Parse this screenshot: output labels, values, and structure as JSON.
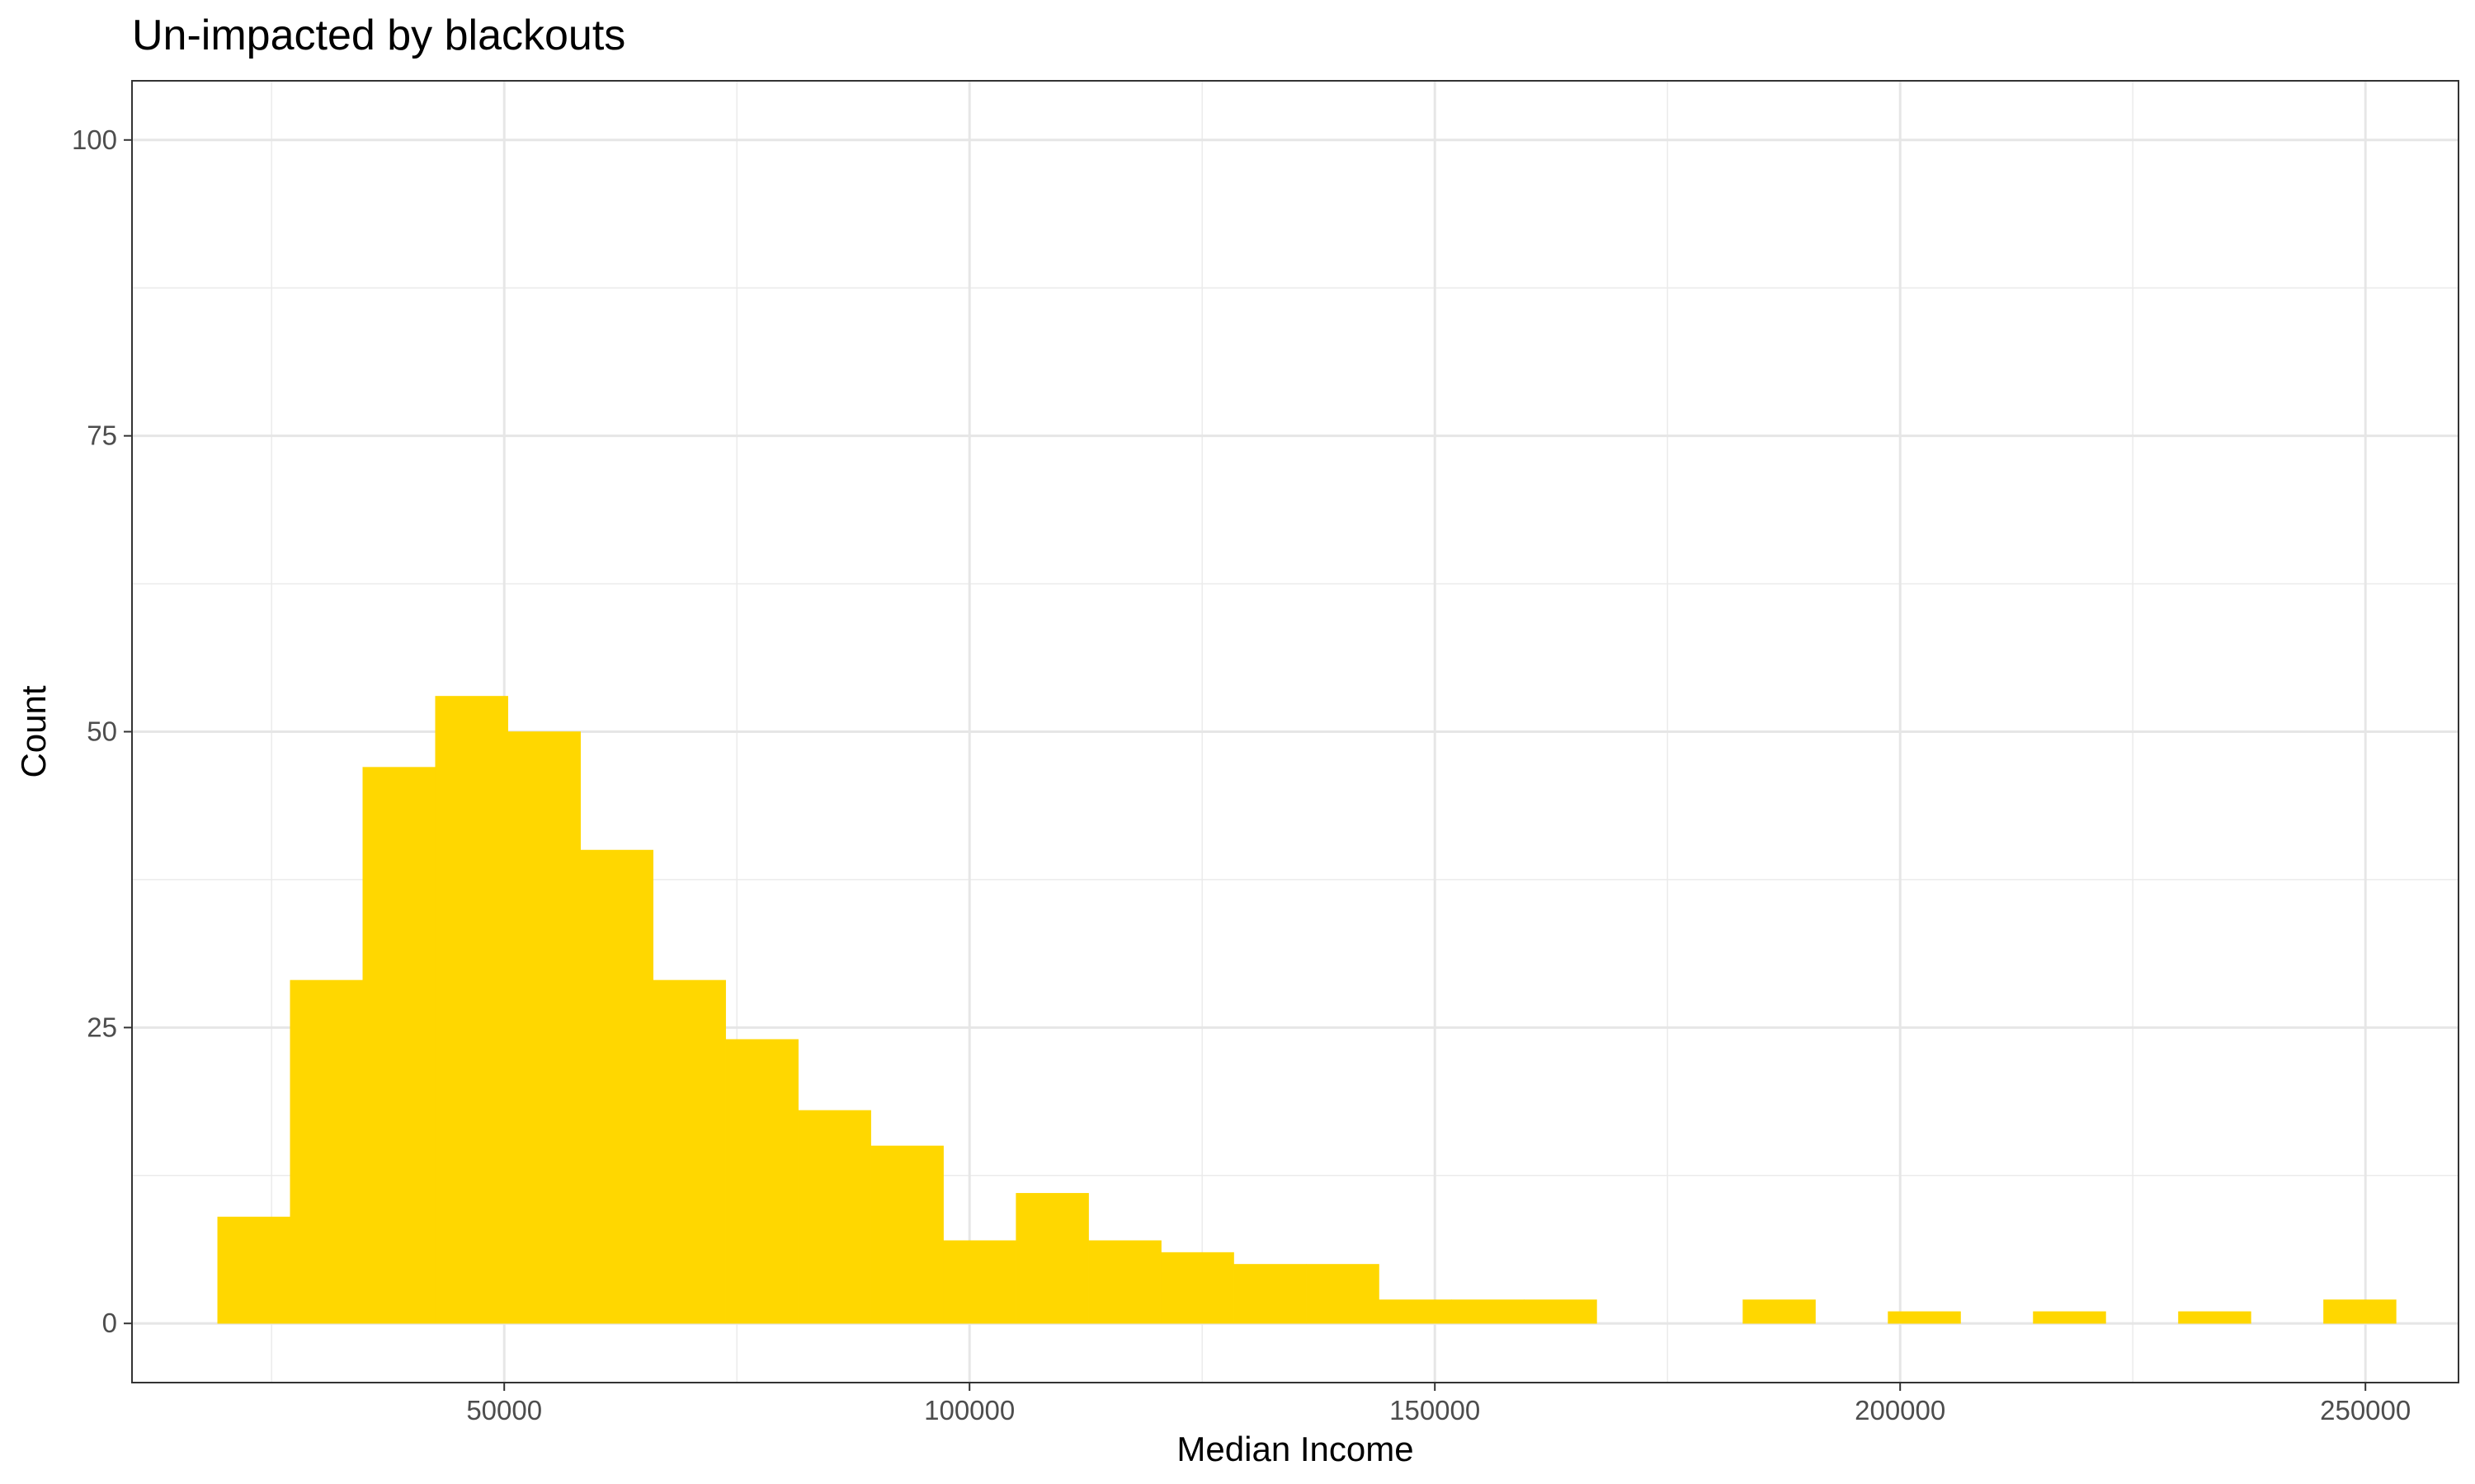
{
  "chart_data": {
    "type": "bar",
    "title": "Un-impacted by blackouts",
    "xlabel": "Median Income",
    "ylabel": "Count",
    "bin_width": 7800,
    "xlim": [
      10000,
      260000
    ],
    "ylim": [
      -5,
      105
    ],
    "x_ticks": [
      50000,
      100000,
      150000,
      200000,
      250000
    ],
    "y_ticks": [
      0,
      25,
      50,
      75,
      100
    ],
    "grid": true,
    "legend": "none",
    "bar_color": "#FFD700",
    "bins": [
      {
        "x": 23100,
        "count": 9
      },
      {
        "x": 30900,
        "count": 29
      },
      {
        "x": 38700,
        "count": 47
      },
      {
        "x": 46500,
        "count": 53
      },
      {
        "x": 54300,
        "count": 50
      },
      {
        "x": 62100,
        "count": 40
      },
      {
        "x": 69900,
        "count": 29
      },
      {
        "x": 77700,
        "count": 24
      },
      {
        "x": 85500,
        "count": 18
      },
      {
        "x": 93300,
        "count": 15
      },
      {
        "x": 101100,
        "count": 7
      },
      {
        "x": 108900,
        "count": 11
      },
      {
        "x": 116700,
        "count": 7
      },
      {
        "x": 124500,
        "count": 6
      },
      {
        "x": 132300,
        "count": 5
      },
      {
        "x": 140100,
        "count": 5
      },
      {
        "x": 147900,
        "count": 2
      },
      {
        "x": 155700,
        "count": 2
      },
      {
        "x": 163500,
        "count": 2
      },
      {
        "x": 187000,
        "count": 2
      },
      {
        "x": 202600,
        "count": 1
      },
      {
        "x": 218200,
        "count": 1
      },
      {
        "x": 233800,
        "count": 1
      },
      {
        "x": 249400,
        "count": 2
      }
    ]
  }
}
